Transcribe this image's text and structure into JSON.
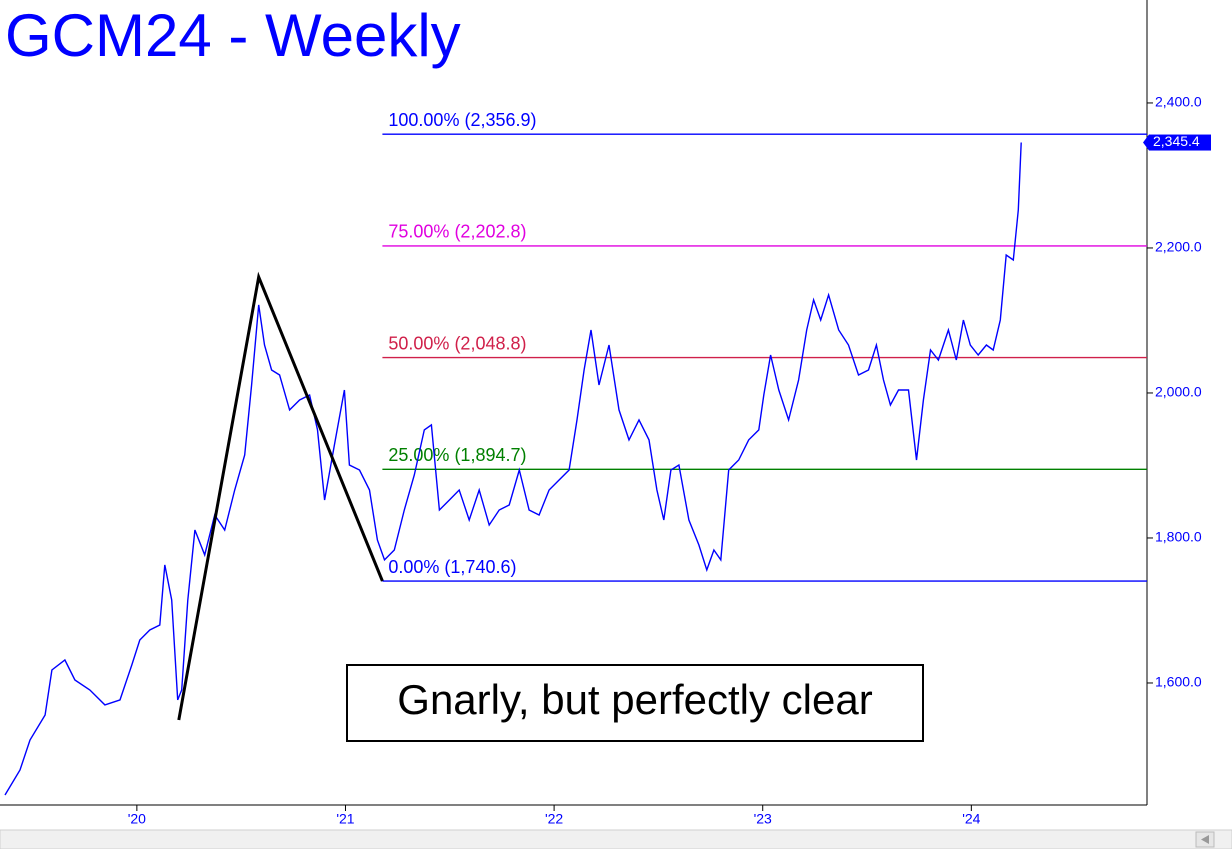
{
  "chart_data": {
    "type": "line",
    "title": "GCM24 - Weekly",
    "annotation": "Gnarly, but perfectly clear",
    "xlim": [
      2019.344,
      2024.842
    ],
    "ylim": [
      1431.7,
      2542
    ],
    "xticks": [
      {
        "value": 2020,
        "label": "'20"
      },
      {
        "value": 2021,
        "label": "'21"
      },
      {
        "value": 2022,
        "label": "'22"
      },
      {
        "value": 2023,
        "label": "'23"
      },
      {
        "value": 2024,
        "label": "'24"
      }
    ],
    "yticks": [
      {
        "value": 1600,
        "label": "1,600.0"
      },
      {
        "value": 1800,
        "label": "1,800.0"
      },
      {
        "value": 2000,
        "label": "2,000.0"
      },
      {
        "value": 2200,
        "label": "2,200.0"
      },
      {
        "value": 2400,
        "label": "2,400.0"
      }
    ],
    "x": [
      2019.368,
      2019.44,
      2019.488,
      2019.56,
      2019.593,
      2019.655,
      2019.703,
      2019.775,
      2019.847,
      2019.919,
      2019.976,
      2020.014,
      2020.062,
      2020.11,
      2020.134,
      2020.167,
      2020.196,
      2020.215,
      2020.244,
      2020.278,
      2020.325,
      2020.373,
      2020.421,
      2020.469,
      2020.517,
      2020.55,
      2020.584,
      2020.612,
      2020.646,
      2020.684,
      2020.732,
      2020.78,
      2020.828,
      2020.866,
      2020.9,
      2020.947,
      2020.995,
      2021.019,
      2021.067,
      2021.115,
      2021.153,
      2021.187,
      2021.234,
      2021.282,
      2021.33,
      2021.378,
      2021.412,
      2021.45,
      2021.498,
      2021.545,
      2021.593,
      2021.641,
      2021.689,
      2021.737,
      2021.785,
      2021.833,
      2021.88,
      2021.928,
      2021.976,
      2022.024,
      2022.072,
      2022.11,
      2022.144,
      2022.177,
      2022.215,
      2022.263,
      2022.311,
      2022.359,
      2022.407,
      2022.455,
      2022.493,
      2022.526,
      2022.56,
      2022.598,
      2022.646,
      2022.694,
      2022.732,
      2022.766,
      2022.799,
      2022.837,
      2022.885,
      2022.933,
      2022.981,
      2023.005,
      2023.038,
      2023.077,
      2023.124,
      2023.172,
      2023.211,
      2023.244,
      2023.278,
      2023.316,
      2023.364,
      2023.411,
      2023.459,
      2023.507,
      2023.545,
      2023.579,
      2023.612,
      2023.651,
      2023.699,
      2023.737,
      2023.77,
      2023.804,
      2023.842,
      2023.89,
      2023.928,
      2023.962,
      2023.995,
      2024.033,
      2024.072,
      2024.105,
      2024.139,
      2024.167,
      2024.201,
      2024.225,
      2024.239
    ],
    "series": [
      {
        "color": "#0000ff",
        "values": [
          1445.5,
          1480.0,
          1521.4,
          1555.9,
          1617.9,
          1631.7,
          1604.1,
          1590.3,
          1569.7,
          1576.6,
          1624.8,
          1659.3,
          1673.1,
          1680.0,
          1762.8,
          1714.5,
          1576.6,
          1590.3,
          1714.5,
          1811.0,
          1776.6,
          1831.7,
          1811.0,
          1866.2,
          1914.5,
          2011.0,
          2121.4,
          2066.2,
          2031.7,
          2024.8,
          1976.6,
          1990.3,
          1997.2,
          1949.0,
          1852.4,
          1928.3,
          2004.1,
          1900.7,
          1893.8,
          1866.2,
          1797.2,
          1769.7,
          1783.4,
          1838.6,
          1886.9,
          1949.0,
          1955.9,
          1838.6,
          1852.4,
          1866.2,
          1824.8,
          1866.2,
          1817.9,
          1838.6,
          1845.5,
          1893.8,
          1838.6,
          1831.7,
          1866.2,
          1880.0,
          1893.8,
          1962.8,
          2031.7,
          2086.9,
          2011.0,
          2066.2,
          1976.6,
          1935.2,
          1962.8,
          1935.2,
          1866.2,
          1824.8,
          1893.8,
          1900.7,
          1824.8,
          1790.3,
          1755.9,
          1783.4,
          1769.7,
          1893.8,
          1907.6,
          1935.2,
          1949.0,
          1997.2,
          2052.4,
          2004.1,
          1962.8,
          2017.9,
          2086.9,
          2128.3,
          2100.7,
          2135.2,
          2086.9,
          2066.2,
          2024.8,
          2031.7,
          2066.2,
          2017.9,
          1983.4,
          2004.1,
          2004.1,
          1907.6,
          1990.3,
          2059.3,
          2045.5,
          2086.9,
          2045.5,
          2100.7,
          2066.2,
          2052.4,
          2066.2,
          2059.3,
          2100.7,
          2190.3,
          2183.4,
          2252.4,
          2345.4
        ]
      }
    ],
    "price_label": {
      "value": 2345.4,
      "label": "2,345.4"
    },
    "levels": [
      {
        "value": 2356.9,
        "label": "100.00% (2,356.9)",
        "color": "#0000ff"
      },
      {
        "value": 2202.8,
        "label": "75.00% (2,202.8)",
        "color": "#e000e0"
      },
      {
        "value": 2048.8,
        "label": "50.00% (2,048.8)",
        "color": "#d0204a"
      },
      {
        "value": 1894.7,
        "label": "25.00% (1,894.7)",
        "color": "#008000"
      },
      {
        "value": 1740.6,
        "label": "0.00% (1,740.6)",
        "color": "#0000ff"
      }
    ],
    "pattern": {
      "color": "#000000",
      "x": [
        2020.201,
        2020.584,
        2021.177
      ],
      "values": [
        1549,
        2160,
        1740.6
      ]
    }
  }
}
